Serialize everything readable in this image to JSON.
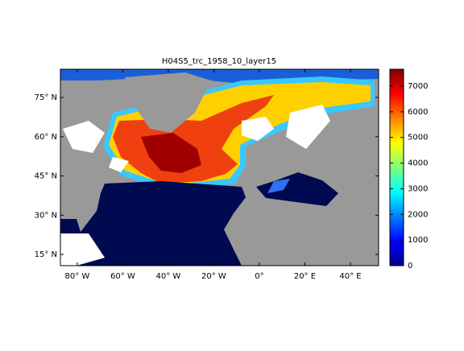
{
  "chart_data": {
    "type": "map",
    "title": "H04S5_trc_1958_10_layer15",
    "xlim": [
      -87.4,
      52.4
    ],
    "xticks": [
      {
        "value": -80,
        "label": "80° W"
      },
      {
        "value": -60,
        "label": "60° W"
      },
      {
        "value": -40,
        "label": "40° W"
      },
      {
        "value": -20,
        "label": "20° W"
      },
      {
        "value": 0,
        "label": "0°"
      },
      {
        "value": 20,
        "label": "20° E"
      },
      {
        "value": 40,
        "label": "40° E"
      }
    ],
    "ylim": [
      10.7,
      85.8
    ],
    "yticks": [
      {
        "value": 15,
        "label": "15° N"
      },
      {
        "value": 30,
        "label": "30° N"
      },
      {
        "value": 45,
        "label": "45° N"
      },
      {
        "value": 60,
        "label": "60° N"
      },
      {
        "value": 75,
        "label": "75° N"
      }
    ],
    "colorbar": {
      "clim": [
        0,
        7660
      ],
      "ticks": [
        0,
        1000,
        2000,
        3000,
        4000,
        5000,
        6000,
        7000
      ],
      "colormap": "jet"
    },
    "land_color": "#999999"
  }
}
